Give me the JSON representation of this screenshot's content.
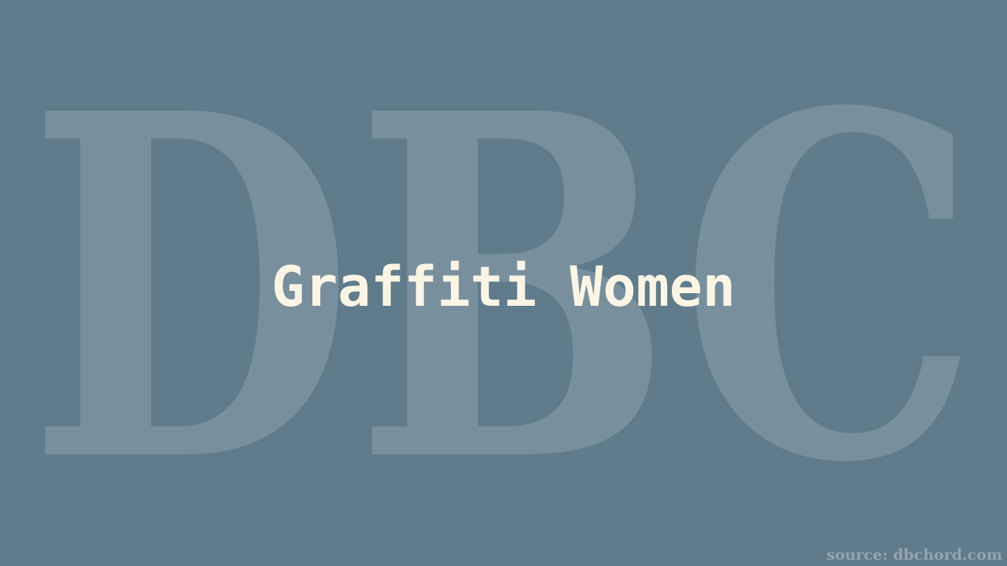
{
  "background_color": "#5f7b8c",
  "watermark": {
    "text": "DBC"
  },
  "title": {
    "text": "Graffiti Women",
    "color": "#fdf5e4"
  },
  "footer": {
    "source_text": "source: dbchord.com"
  }
}
